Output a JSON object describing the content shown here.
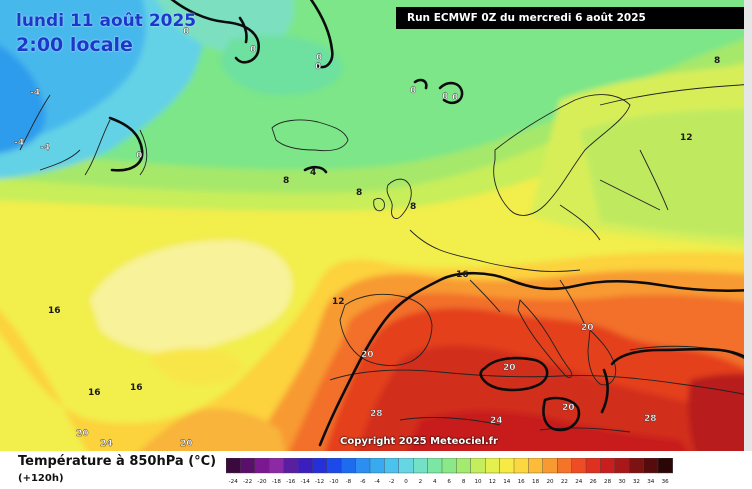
{
  "header": {
    "date_line_1": "lundi 11 août 2025",
    "date_line_2": "2:00 locale",
    "run_info": "Run ECMWF 0Z du mercredi 6 août 2025"
  },
  "copyright": "Copyright 2025 Meteociel.fr",
  "legend": {
    "title": "Température à 850hPa (°C)",
    "subtitle": "(+120h)",
    "ticks": [
      "-24",
      "-22",
      "-20",
      "-18",
      "-16",
      "-14",
      "-12",
      "-10",
      "-8",
      "-6",
      "-4",
      "-2",
      "0",
      "2",
      "4",
      "6",
      "8",
      "10",
      "12",
      "14",
      "16",
      "18",
      "20",
      "22",
      "24",
      "26",
      "28",
      "30",
      "32",
      "34",
      "36"
    ],
    "colors": [
      "#3a0a3c",
      "#5a0f6a",
      "#7a1890",
      "#8c2aa6",
      "#5a1fa0",
      "#3c1ec0",
      "#2530d8",
      "#1c4ae8",
      "#1d6cf0",
      "#2b8ef0",
      "#37aaf0",
      "#4cc3ee",
      "#66d6e2",
      "#74e0c6",
      "#7ce6a4",
      "#8ae888",
      "#a4ea6e",
      "#c4ee5c",
      "#e4f04e",
      "#f6ea44",
      "#fcd840",
      "#fcbc3a",
      "#f89a32",
      "#f4742a",
      "#ee4c24",
      "#e03020",
      "#c81e1e",
      "#a81818",
      "#7c1212",
      "#560c0c",
      "#2a0606"
    ]
  },
  "map_labels": [
    {
      "text": "-4",
      "color": "light"
    },
    {
      "text": "-4",
      "color": "light"
    },
    {
      "text": "-4",
      "color": "light"
    },
    {
      "text": "0",
      "color": "light"
    },
    {
      "text": "0",
      "color": "light"
    },
    {
      "text": "0",
      "color": "light"
    },
    {
      "text": "0",
      "color": "light"
    },
    {
      "text": "0",
      "color": "light"
    },
    {
      "text": "0",
      "color": "light"
    },
    {
      "text": "0",
      "color": "light"
    },
    {
      "text": "0",
      "color": "light"
    },
    {
      "text": "4",
      "color": "dark"
    },
    {
      "text": "8",
      "color": "dark"
    },
    {
      "text": "8",
      "color": "dark"
    },
    {
      "text": "8",
      "color": "dark"
    },
    {
      "text": "8",
      "color": "dark"
    },
    {
      "text": "12",
      "color": "dark"
    },
    {
      "text": "12",
      "color": "dark"
    },
    {
      "text": "16",
      "color": "dark"
    },
    {
      "text": "16",
      "color": "dark"
    },
    {
      "text": "16",
      "color": "dark"
    },
    {
      "text": "16",
      "color": "dark"
    },
    {
      "text": "20",
      "color": "light"
    },
    {
      "text": "20",
      "color": "light"
    },
    {
      "text": "20",
      "color": "light"
    },
    {
      "text": "20",
      "color": "light"
    },
    {
      "text": "20",
      "color": "light"
    },
    {
      "text": "20",
      "color": "light"
    },
    {
      "text": "24",
      "color": "light"
    },
    {
      "text": "24",
      "color": "light"
    },
    {
      "text": "28",
      "color": "light"
    },
    {
      "text": "28",
      "color": "light"
    }
  ]
}
